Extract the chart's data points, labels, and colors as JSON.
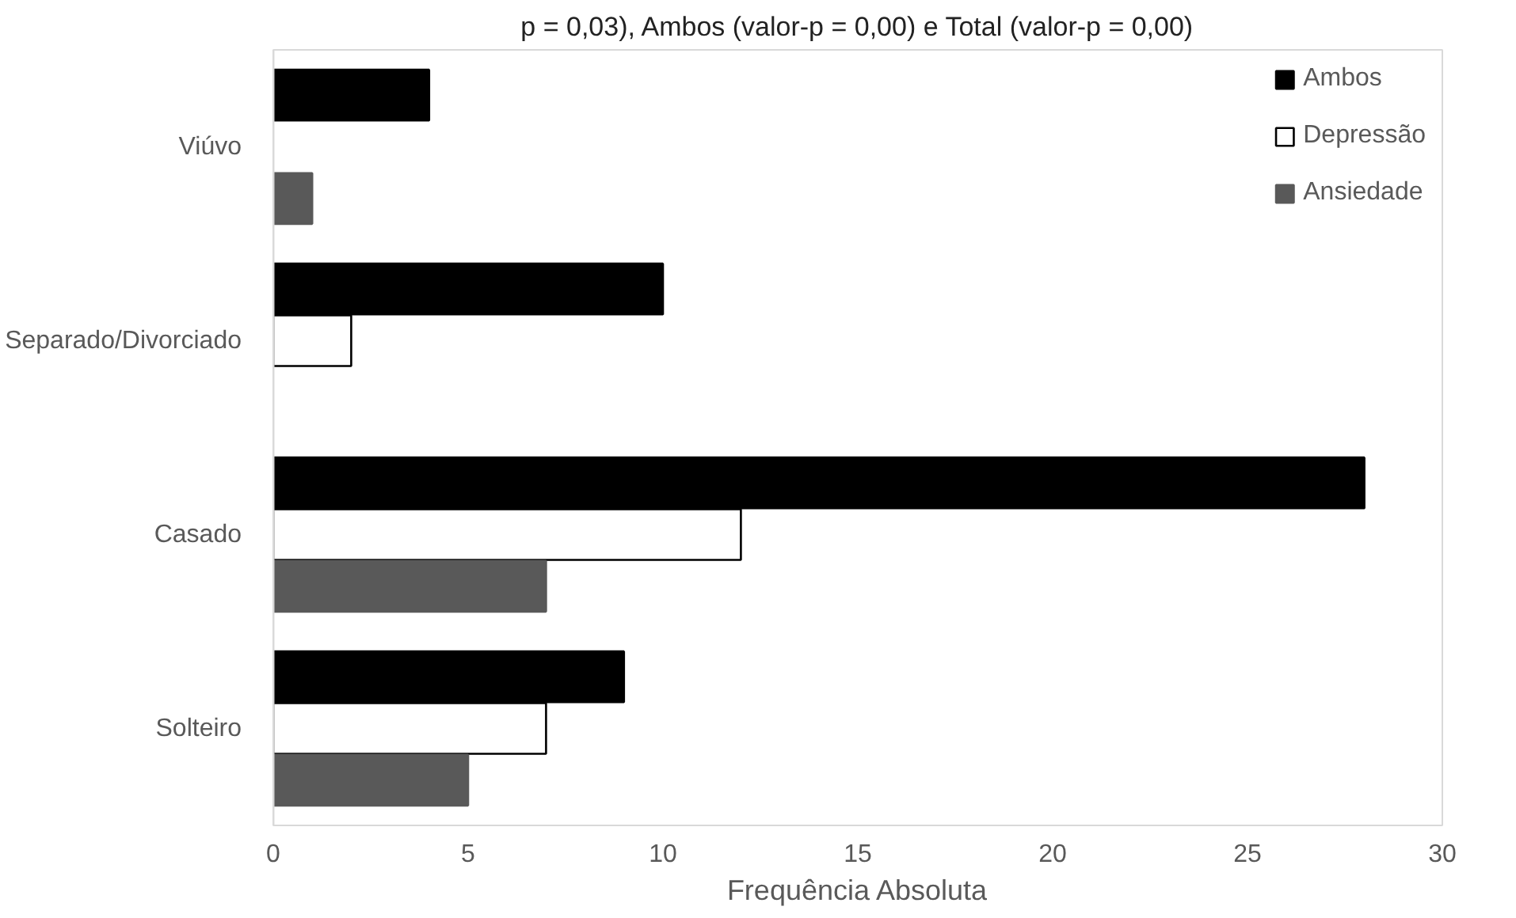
{
  "chart_data": {
    "type": "bar",
    "orientation": "horizontal",
    "title": "p = 0,03), Ambos (valor-p = 0,00) e Total (valor-p = 0,00)",
    "xlabel": "Frequência Absoluta",
    "categories": [
      "Viúvo",
      "Separado/Divorciado",
      "Casado",
      "Solteiro"
    ],
    "series": [
      {
        "name": "Ambos",
        "color": "#000000",
        "values": [
          4,
          10,
          28,
          9
        ]
      },
      {
        "name": "Depressão",
        "color": "#ffffff",
        "values": [
          0,
          2,
          12,
          7
        ]
      },
      {
        "name": "Ansiedade",
        "color": "#595959",
        "values": [
          1,
          0,
          7,
          5
        ]
      }
    ],
    "xlim": [
      0,
      30
    ],
    "xticks": [
      0,
      5,
      10,
      15,
      20,
      25,
      30
    ],
    "grid": false,
    "legend": "top right"
  }
}
